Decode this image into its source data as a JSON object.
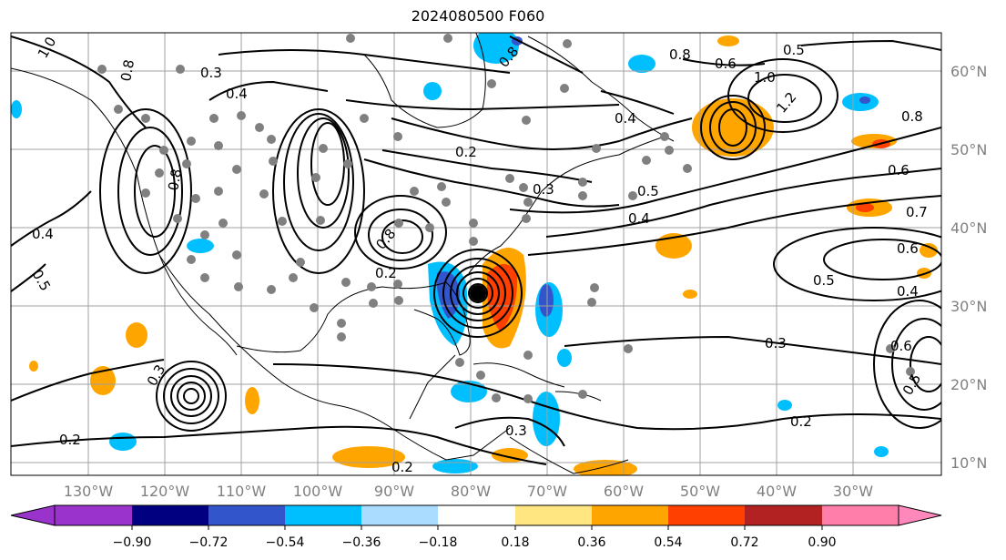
{
  "title": "2024080500 F060",
  "map": {
    "projection": "cylindrical",
    "lon_range": [
      -138,
      -15
    ],
    "lat_range": [
      7,
      65
    ],
    "grid_color": "#a0a0a0",
    "coastline_color": "#000000",
    "contour_color": "#000000",
    "station_marker_color": "#808080",
    "storm_center_color": "#000000",
    "storm_center": {
      "lon": -80.5,
      "lat": 31.5
    }
  },
  "lat_labels": [
    "60°N",
    "50°N",
    "40°N",
    "30°N",
    "20°N",
    "10°N"
  ],
  "lon_labels": [
    "130°W",
    "120°W",
    "110°W",
    "100°W",
    "90°W",
    "80°W",
    "70°W",
    "60°W",
    "50°W",
    "40°W",
    "30°W"
  ],
  "contour_labels": [
    "1.0",
    "0.8",
    "0.3",
    "0.4",
    "0.6",
    "0.8",
    "1.0",
    "1.2",
    "0.8",
    "0.5",
    "0.4",
    "0.2",
    "0.3",
    "0.5",
    "0.4",
    "0.6",
    "0.7",
    "0.6",
    "0.5",
    "0.4",
    "0.3",
    "0.6",
    "0.5",
    "0.2",
    "0.2",
    "0.3",
    "0.2",
    "0.4",
    "0.5",
    "0.8",
    "0.8",
    "0.3",
    "0.8",
    "0.2"
  ],
  "colorbar": {
    "ticks": [
      "−0.90",
      "−0.72",
      "−0.54",
      "−0.36",
      "−0.18",
      "0.18",
      "0.36",
      "0.54",
      "0.72",
      "0.90"
    ],
    "colors": [
      "#9933cc",
      "#000080",
      "#3355cc",
      "#00bfff",
      "#aadcff",
      "#ffffff",
      "#ffe680",
      "#ffa500",
      "#ff4000",
      "#b22222",
      "#ff7faa",
      "#ff88bb"
    ]
  }
}
